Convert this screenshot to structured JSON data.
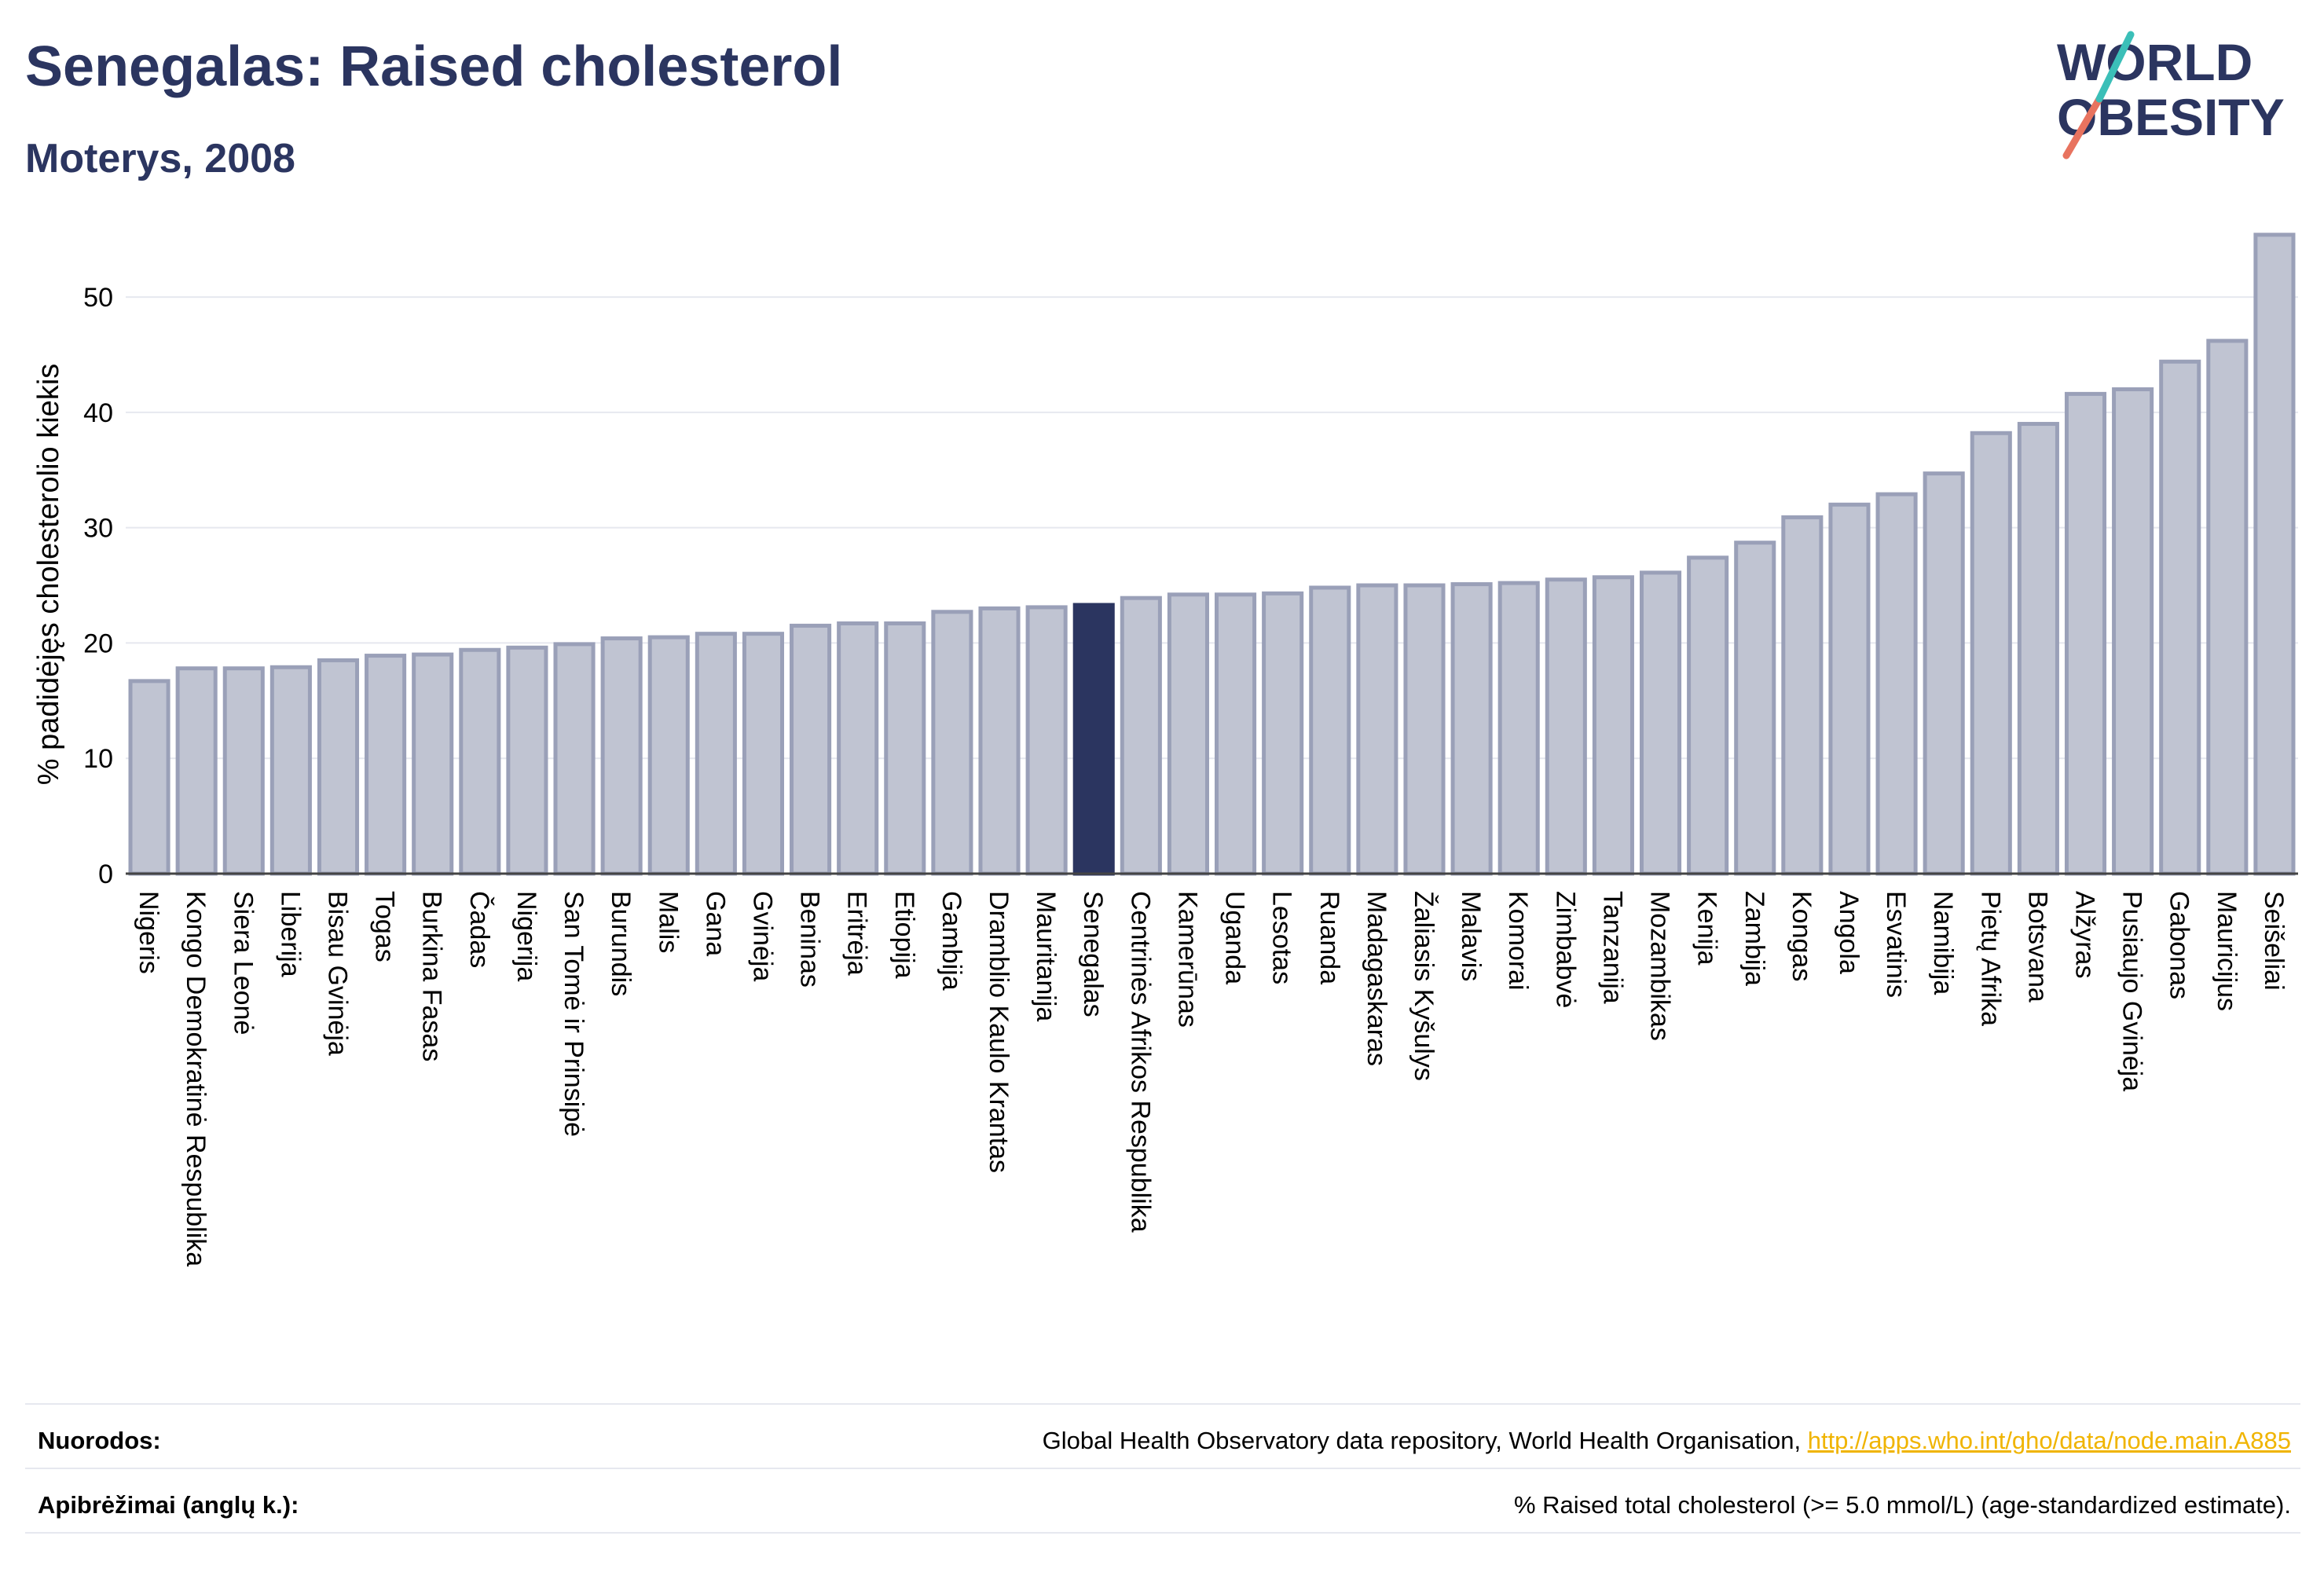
{
  "header": {
    "title": "Senegalas: Raised cholesterol",
    "subtitle": "Moterys, 2008",
    "logo_line1": "WORLD",
    "logo_line2": "OBESITY"
  },
  "colors": {
    "bar": "#c0c4d2",
    "bar_border": "#9aa0b8",
    "highlight": "#2b3560",
    "grid": "#e6e8ef",
    "title": "#2b3560",
    "link": "#f0b400"
  },
  "chart_data": {
    "type": "bar",
    "title": "Senegalas: Raised cholesterol",
    "subtitle": "Moterys, 2008",
    "ylabel": "% padidėjęs cholesterolio kiekis",
    "xlabel": "",
    "ylim": [
      0,
      56
    ],
    "yticks": [
      0,
      10,
      20,
      30,
      40,
      50
    ],
    "grid": true,
    "highlight": "Senegalas",
    "categories": [
      "Nigeris",
      "Kongo Demokratinė Respublika",
      "Siera Leonė",
      "Liberija",
      "Bisau Gvinėja",
      "Togas",
      "Burkina Fasas",
      "Čadas",
      "Nigerija",
      "San Tomė ir Prinsipė",
      "Burundis",
      "Malis",
      "Gana",
      "Gvinėja",
      "Beninas",
      "Eritrėja",
      "Etiopija",
      "Gambija",
      "Dramblio Kaulo Krantas",
      "Mauritanija",
      "Senegalas",
      "Centrinės Afrikos Respublika",
      "Kamerūnas",
      "Uganda",
      "Lesotas",
      "Ruanda",
      "Madagaskaras",
      "Žaliasis Kyšulys",
      "Malavis",
      "Komorai",
      "Zimbabvė",
      "Tanzanija",
      "Mozambikas",
      "Kenija",
      "Zambija",
      "Kongas",
      "Angola",
      "Esvatinis",
      "Namibija",
      "Pietų Afrika",
      "Botsvana",
      "Alžyras",
      "Pusiaujo Gvinėja",
      "Gabonas",
      "Mauricijus",
      "Seišeliai"
    ],
    "values": [
      16.7,
      17.8,
      17.8,
      17.9,
      18.5,
      18.9,
      19.0,
      19.4,
      19.6,
      19.9,
      20.4,
      20.5,
      20.8,
      20.8,
      21.5,
      21.7,
      21.7,
      22.7,
      23.0,
      23.1,
      23.3,
      23.9,
      24.2,
      24.2,
      24.3,
      24.8,
      25.0,
      25.0,
      25.1,
      25.2,
      25.5,
      25.7,
      26.1,
      27.4,
      28.7,
      30.9,
      32.0,
      32.9,
      34.7,
      38.2,
      39.0,
      41.6,
      42.0,
      44.4,
      46.2,
      55.4
    ]
  },
  "footer": {
    "sources_label": "Nuorodos:",
    "sources_text": "Global Health Observatory data repository, World Health Organisation, ",
    "sources_link": "http://apps.who.int/gho/data/node.main.A885",
    "definitions_label": "Apibrėžimai (anglų k.):",
    "definitions_text": "% Raised total cholesterol (>= 5.0 mmol/L) (age-standardized estimate)."
  }
}
